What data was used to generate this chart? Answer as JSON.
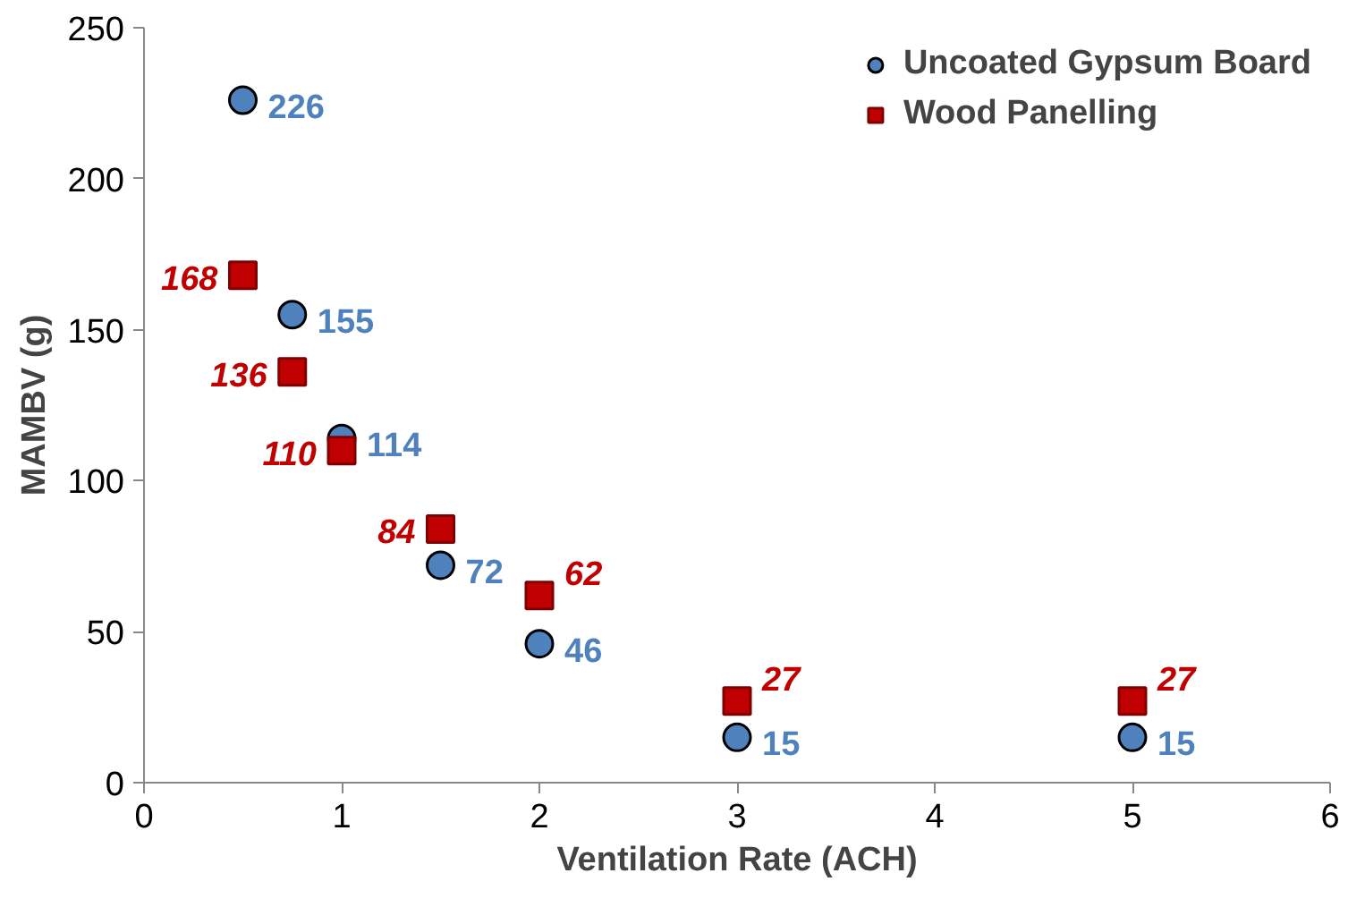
{
  "chart_data": {
    "type": "scatter",
    "xlabel": "Ventilation Rate (ACH)",
    "ylabel": "MAMBV (g)",
    "xlim": [
      0,
      6
    ],
    "xticks": [
      0,
      1,
      2,
      3,
      4,
      5,
      6
    ],
    "ylim": [
      0,
      250
    ],
    "yticks": [
      0,
      50,
      100,
      150,
      200,
      250
    ],
    "grid": false,
    "legend": "top right",
    "data_labels": true,
    "series": [
      {
        "name": "Uncoated Gypsum Board",
        "color": "#4f81bd",
        "marker": "circle",
        "x": [
          0.5,
          0.75,
          1,
          1.5,
          2,
          3,
          5
        ],
        "values": [
          226,
          155,
          114,
          72,
          46,
          15,
          15
        ]
      },
      {
        "name": "Wood Panelling",
        "color": "#c00000",
        "marker": "square",
        "x": [
          0.5,
          0.75,
          1,
          1.5,
          2,
          3,
          5
        ],
        "values": [
          168,
          136,
          110,
          84,
          62,
          27,
          27
        ]
      }
    ]
  }
}
